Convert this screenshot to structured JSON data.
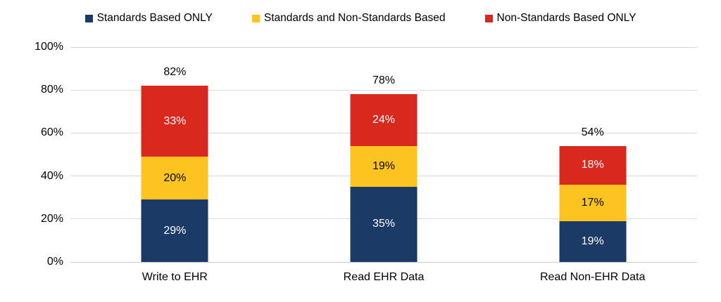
{
  "chart_data": {
    "type": "bar",
    "subtype": "stacked-column",
    "title": "",
    "xlabel": "",
    "ylabel": "",
    "ylim": [
      0,
      100
    ],
    "grid": true,
    "legend_position": "top-center",
    "y_ticks": [
      "0%",
      "20%",
      "40%",
      "60%",
      "80%",
      "100%"
    ],
    "categories": [
      "Write to EHR",
      "Read EHR Data",
      "Read Non-EHR Data"
    ],
    "series": [
      {
        "name": "Standards Based ONLY",
        "color": "#1b3a66",
        "label_color": "#ffffff",
        "values": [
          29,
          35,
          19
        ]
      },
      {
        "name": "Standards and Non-Standards Based",
        "color": "#fdc421",
        "label_color": "#000000",
        "values": [
          20,
          19,
          17
        ]
      },
      {
        "name": "Non-Standards Based ONLY",
        "color": "#d9291f",
        "label_color": "#ffffff",
        "values": [
          33,
          24,
          18
        ]
      }
    ],
    "totals": [
      82,
      78,
      54
    ],
    "value_suffix": "%",
    "colors": {
      "gridline": "#d9d9d9",
      "text": "#000000"
    }
  }
}
